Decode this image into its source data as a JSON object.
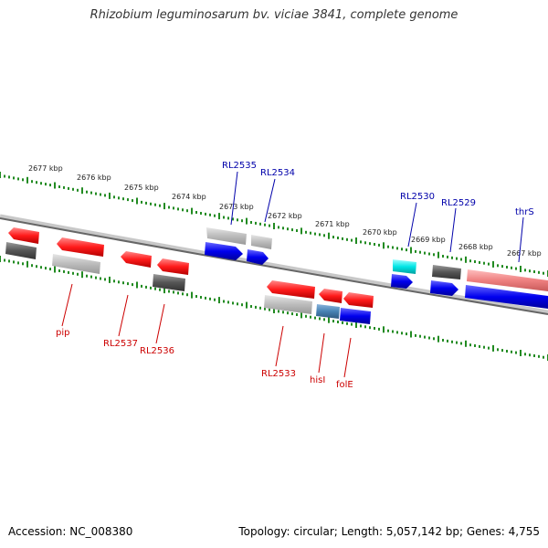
{
  "title": "Rhizobium leguminosarum bv. viciae 3841, complete genome",
  "footer": {
    "accession": "Accession: NC_008380",
    "summary": "Topology: circular; Length: 5,057,142 bp; Genes: 4,755"
  },
  "colors": {
    "forward_cds": "#0000ee",
    "reverse_cds": "#ee0000",
    "gray_feature": "#555555",
    "light_gray_feature": "#bbbbbb",
    "cyan_feature": "#00e5e5",
    "steelblue_feature": "#4682b4",
    "pink_feature": "#ee8080",
    "tick_color": "#228b22",
    "forward_label": "#0000aa",
    "reverse_label": "#cc0000"
  },
  "ticks": [
    {
      "label": "2677 kbp"
    },
    {
      "label": "2676 kbp"
    },
    {
      "label": "2675 kbp"
    },
    {
      "label": "2674 kbp"
    },
    {
      "label": "2673 kbp"
    },
    {
      "label": "2672 kbp"
    },
    {
      "label": "2671 kbp"
    },
    {
      "label": "2670 kbp"
    },
    {
      "label": "2669 kbp"
    },
    {
      "label": "2668 kbp"
    },
    {
      "label": "2667 kbp"
    }
  ],
  "forward_labels": [
    {
      "name": "RL2535"
    },
    {
      "name": "RL2534"
    },
    {
      "name": "RL2530"
    },
    {
      "name": "RL2529"
    },
    {
      "name": "thrS"
    }
  ],
  "reverse_labels": [
    {
      "name": "pip"
    },
    {
      "name": "RL2537"
    },
    {
      "name": "RL2536"
    },
    {
      "name": "RL2533"
    },
    {
      "name": "hisI"
    },
    {
      "name": "folE"
    }
  ]
}
